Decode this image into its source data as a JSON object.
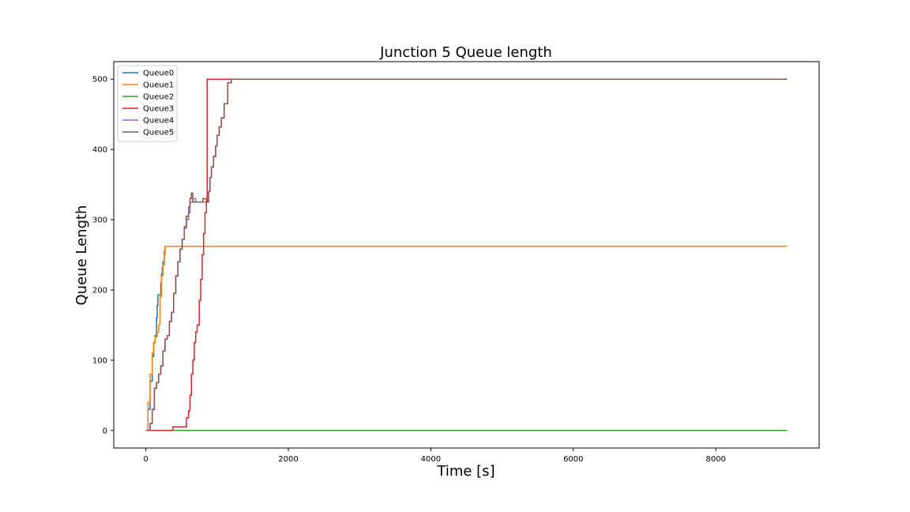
{
  "chart_data": {
    "type": "line",
    "title": "Junction 5 Queue length",
    "xlabel": "Time [s]",
    "ylabel": "Queue Length",
    "xlim": [
      -450,
      9450
    ],
    "ylim": [
      -25,
      525
    ],
    "xticks": [
      0,
      2000,
      4000,
      6000,
      8000
    ],
    "yticks": [
      0,
      100,
      200,
      300,
      400,
      500
    ],
    "grid": false,
    "legend_position": "upper-left",
    "series": [
      {
        "name": "Queue0",
        "color": "#1f77b4",
        "x": [
          0,
          30,
          60,
          90,
          110,
          130,
          150,
          160,
          170,
          180,
          190,
          200,
          210,
          220,
          230,
          240,
          260,
          270,
          9000
        ],
        "y": [
          0,
          30,
          70,
          105,
          125,
          135,
          160,
          178,
          193,
          193,
          193,
          193,
          210,
          222,
          232,
          240,
          255,
          262,
          262
        ]
      },
      {
        "name": "Queue1",
        "color": "#ff7f0e",
        "x": [
          0,
          30,
          60,
          90,
          110,
          130,
          160,
          180,
          200,
          220,
          240,
          260,
          270,
          9000
        ],
        "y": [
          0,
          40,
          80,
          110,
          125,
          133,
          140,
          150,
          190,
          220,
          235,
          250,
          262,
          262
        ]
      },
      {
        "name": "Queue2",
        "color": "#2ca02c",
        "x": [
          0,
          9000
        ],
        "y": [
          0,
          0
        ]
      },
      {
        "name": "Queue3",
        "color": "#d62728",
        "x": [
          0,
          370,
          380,
          560,
          570,
          600,
          620,
          640,
          660,
          680,
          700,
          720,
          750,
          770,
          790,
          810,
          830,
          850,
          860,
          9000
        ],
        "y": [
          0,
          0,
          5,
          5,
          18,
          28,
          50,
          80,
          100,
          125,
          140,
          150,
          185,
          215,
          250,
          280,
          310,
          325,
          500,
          500
        ]
      },
      {
        "name": "Queue4",
        "color": "#9467bd",
        "x": [
          0,
          60,
          90,
          120,
          150,
          180,
          210,
          240,
          270,
          300,
          330,
          360,
          390,
          420,
          450,
          480,
          510,
          540,
          570,
          600,
          620,
          660,
          700,
          750,
          800,
          850,
          880,
          900,
          920,
          950,
          980,
          1000,
          1030,
          1060,
          1100,
          1150,
          1200,
          9000
        ],
        "y": [
          0,
          10,
          30,
          60,
          68,
          80,
          92,
          113,
          130,
          135,
          155,
          168,
          195,
          220,
          240,
          258,
          272,
          288,
          300,
          310,
          325,
          330,
          325,
          325,
          325,
          325,
          340,
          360,
          375,
          390,
          405,
          420,
          432,
          445,
          465,
          495,
          500,
          500
        ]
      },
      {
        "name": "Queue5",
        "color": "#8c564b",
        "x": [
          0,
          60,
          90,
          120,
          150,
          180,
          210,
          240,
          270,
          300,
          330,
          360,
          390,
          420,
          450,
          480,
          510,
          540,
          570,
          600,
          620,
          640,
          660,
          700,
          750,
          800,
          850,
          880,
          900,
          920,
          950,
          980,
          1000,
          1030,
          1060,
          1100,
          1150,
          1200,
          9000
        ],
        "y": [
          0,
          10,
          30,
          60,
          68,
          80,
          92,
          113,
          130,
          135,
          155,
          168,
          195,
          220,
          240,
          258,
          272,
          290,
          305,
          318,
          330,
          338,
          325,
          325,
          325,
          330,
          325,
          340,
          360,
          375,
          390,
          405,
          420,
          432,
          445,
          465,
          495,
          500,
          500
        ]
      }
    ]
  }
}
